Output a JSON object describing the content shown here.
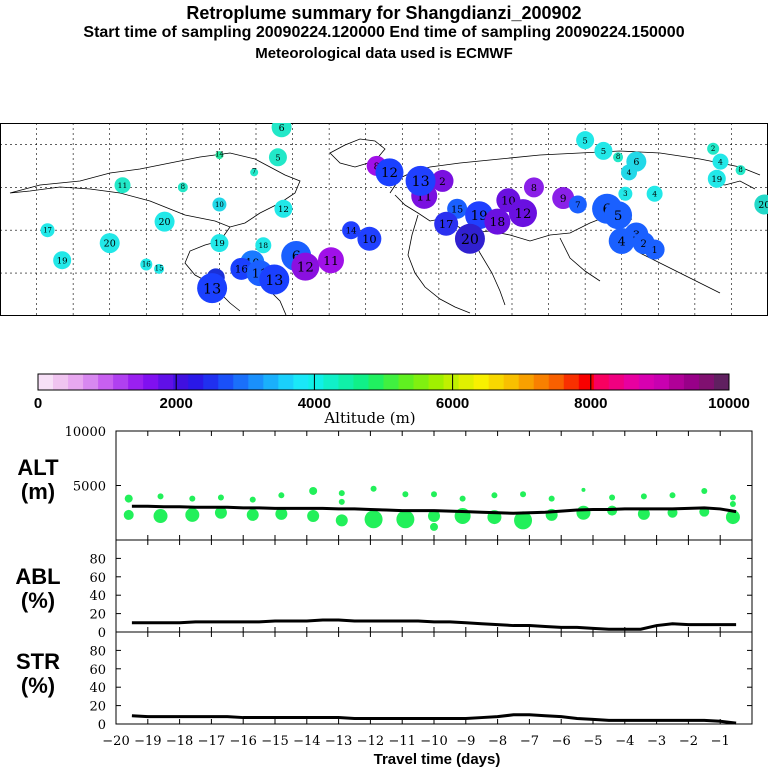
{
  "header": {
    "title": "Retroplume summary for Shangdianzi_200902",
    "sampling": "Start time of sampling 20090224.120000     End time of sampling 20090224.150000",
    "met": "Meteorological data used is ECMWF"
  },
  "map": {
    "plume_labels": [
      {
        "t": "11",
        "lon": -113,
        "lat": 61,
        "c": "#22e8c8"
      },
      {
        "t": "10",
        "lon": -60,
        "lat": 52,
        "c": "#22d8e8"
      },
      {
        "t": "8",
        "lon": -80,
        "lat": 60,
        "c": "#22e8c8"
      },
      {
        "t": "14",
        "lon": -60,
        "lat": 75,
        "c": "#22e8a0"
      },
      {
        "t": "7",
        "lon": -41,
        "lat": 67,
        "c": "#22e8c8"
      },
      {
        "t": "5",
        "lon": -28,
        "lat": 74,
        "c": "#22e8c8"
      },
      {
        "t": "6",
        "lon": -26,
        "lat": 88,
        "c": "#22e8c8"
      },
      {
        "t": "20",
        "lon": -90,
        "lat": 44,
        "c": "#22e8e8"
      },
      {
        "t": "19",
        "lon": -60,
        "lat": 34,
        "c": "#22e8e8"
      },
      {
        "t": "18",
        "lon": -36,
        "lat": 33,
        "c": "#22e8e8"
      },
      {
        "t": "6",
        "lon": -18,
        "lat": 28,
        "c": "#1a60ff"
      },
      {
        "t": "10",
        "lon": -42,
        "lat": 25,
        "c": "#1a7aff"
      },
      {
        "t": "12",
        "lon": -25,
        "lat": 50,
        "c": "#22e8e8"
      },
      {
        "t": "17",
        "lon": -154,
        "lat": 40,
        "c": "#22e8e8"
      },
      {
        "t": "19",
        "lon": -146,
        "lat": 26,
        "c": "#22e8e8"
      },
      {
        "t": "20",
        "lon": -120,
        "lat": 34,
        "c": "#22e8e8"
      },
      {
        "t": "16",
        "lon": -100,
        "lat": 24,
        "c": "#22e8e8"
      },
      {
        "t": "15",
        "lon": -93,
        "lat": 22,
        "c": "#22e8e8"
      },
      {
        "t": "7",
        "lon": -62,
        "lat": 18,
        "c": "#1a30d8"
      },
      {
        "t": "16",
        "lon": -48,
        "lat": 22,
        "c": "#1a40ff"
      },
      {
        "t": "11",
        "lon": -38,
        "lat": 20,
        "c": "#1a60ff"
      },
      {
        "t": "13",
        "lon": -30,
        "lat": 17,
        "c": "#1a40ff"
      },
      {
        "t": "12",
        "lon": -13,
        "lat": 23,
        "c": "#8a10e0"
      },
      {
        "t": "11",
        "lon": 1,
        "lat": 26,
        "c": "#a010e8"
      },
      {
        "t": "13",
        "lon": -64,
        "lat": 13,
        "c": "#1a40ff"
      },
      {
        "t": "14",
        "lon": 12,
        "lat": 40,
        "c": "#2040ff"
      },
      {
        "t": "10",
        "lon": 22,
        "lat": 36,
        "c": "#2040ff"
      },
      {
        "t": "8",
        "lon": 26,
        "lat": 70,
        "c": "#a010e8"
      },
      {
        "t": "12",
        "lon": 33,
        "lat": 67,
        "c": "#1a40ff"
      },
      {
        "t": "11",
        "lon": 52,
        "lat": 56,
        "c": "#7a10e0"
      },
      {
        "t": "2",
        "lon": 62,
        "lat": 63,
        "c": "#7a10e0"
      },
      {
        "t": "15",
        "lon": 70,
        "lat": 50,
        "c": "#1a60ff"
      },
      {
        "t": "19",
        "lon": 82,
        "lat": 47,
        "c": "#2040ff"
      },
      {
        "t": "18",
        "lon": 92,
        "lat": 44,
        "c": "#6a10e0"
      },
      {
        "t": "20",
        "lon": 77,
        "lat": 36,
        "c": "#3020d0"
      },
      {
        "t": "17",
        "lon": 64,
        "lat": 43,
        "c": "#2a30f0"
      },
      {
        "t": "8",
        "lon": 112,
        "lat": 60,
        "c": "#8a20e8"
      },
      {
        "t": "9",
        "lon": 128,
        "lat": 55,
        "c": "#8a20e8"
      },
      {
        "t": "7",
        "lon": 136,
        "lat": 52,
        "c": "#1a60ff"
      },
      {
        "t": "6",
        "lon": 152,
        "lat": 50,
        "c": "#1a60ff"
      },
      {
        "t": "5",
        "lon": 158,
        "lat": 47,
        "c": "#1a60ff"
      },
      {
        "t": "4",
        "lon": 160,
        "lat": 35,
        "c": "#1a60ff"
      },
      {
        "t": "3",
        "lon": 168,
        "lat": 38,
        "c": "#1a60ff"
      },
      {
        "t": "2",
        "lon": 172,
        "lat": 34,
        "c": "#1a60ff"
      },
      {
        "t": "1",
        "lon": 178,
        "lat": 31,
        "c": "#1a60ff"
      },
      {
        "t": "10",
        "lon": 98,
        "lat": 54,
        "c": "#6a10e0"
      },
      {
        "t": "12",
        "lon": 106,
        "lat": 48,
        "c": "#6a10e0"
      },
      {
        "t": "13",
        "lon": 50,
        "lat": 63,
        "c": "#2040ff"
      },
      {
        "t": "4",
        "lon": 164,
        "lat": 67,
        "c": "#22d8e8"
      },
      {
        "t": "3",
        "lon": 162,
        "lat": 57,
        "c": "#22e8e8"
      },
      {
        "t": "4",
        "lon": 178,
        "lat": 57,
        "c": "#22e8e8"
      },
      {
        "t": "5",
        "lon": 140,
        "lat": 82,
        "c": "#22e8e8"
      },
      {
        "t": "5",
        "lon": 150,
        "lat": 77,
        "c": "#22e8e8"
      },
      {
        "t": "8",
        "lon": 158,
        "lat": 74,
        "c": "#22e8c8"
      },
      {
        "t": "6",
        "lon": 168,
        "lat": 72,
        "c": "#22d8e8"
      },
      {
        "t": "2",
        "lon": 210,
        "lat": 78,
        "c": "#22e8c8"
      },
      {
        "t": "4",
        "lon": 214,
        "lat": 72,
        "c": "#22e8e8"
      },
      {
        "t": "19",
        "lon": 212,
        "lat": 64,
        "c": "#22e8e8"
      },
      {
        "t": "8",
        "lon": 225,
        "lat": 68,
        "c": "#22e8c8"
      },
      {
        "t": "20",
        "lon": 238,
        "lat": 52,
        "c": "#22d8c8"
      }
    ]
  },
  "colorbar": {
    "title": "Altitude (m)",
    "ticks": [
      "0",
      "2000",
      "4000",
      "6000",
      "8000",
      "10000"
    ],
    "colors": [
      "#f7e0f7",
      "#f0c4f0",
      "#e8a8f0",
      "#d888f0",
      "#c860f0",
      "#b040f0",
      "#9a20f0",
      "#8010f0",
      "#6010e8",
      "#4010e0",
      "#2a18e8",
      "#2030f0",
      "#1a50f8",
      "#1a70fa",
      "#1a90fc",
      "#1ab0fc",
      "#1ad0fc",
      "#1ae8f8",
      "#10f0e8",
      "#10f0c8",
      "#10f0a8",
      "#10f088",
      "#20f060",
      "#40f040",
      "#60f020",
      "#80f010",
      "#a0f000",
      "#c0f000",
      "#e0f000",
      "#f8f000",
      "#f8d800",
      "#f8c000",
      "#f8a000",
      "#f88000",
      "#f86000",
      "#f83000",
      "#f80000",
      "#f80060",
      "#f00080",
      "#e800a0",
      "#d800b0",
      "#c800b0",
      "#b00098",
      "#980088",
      "#801070",
      "#602060"
    ]
  },
  "chart_data": {
    "type": "line",
    "xlabel": "Travel time (days)",
    "xlim": [
      -20,
      0
    ],
    "xticks": [
      "-20",
      "-19",
      "-18",
      "-17",
      "-16",
      "-15",
      "-14",
      "-13",
      "-12",
      "-11",
      "-10",
      "-9",
      "-8",
      "-7",
      "-6",
      "-5",
      "-4",
      "-3",
      "-2",
      "-1"
    ],
    "x": [
      -19.5,
      -19,
      -18.5,
      -18,
      -17.5,
      -17,
      -16.5,
      -16,
      -15.5,
      -15,
      -14.5,
      -14,
      -13.5,
      -13,
      -12.5,
      -12,
      -11.5,
      -11,
      -10.5,
      -10,
      -9.5,
      -9,
      -8.5,
      -8,
      -7.5,
      -7,
      -6.5,
      -6,
      -5.5,
      -5,
      -4.5,
      -4,
      -3.5,
      -3,
      -2.5,
      -2,
      -1.5,
      -1,
      -0.5
    ],
    "panels": [
      {
        "label": "ALT\n(m)",
        "name": "ALT (m)",
        "ylim": [
          0,
          10000
        ],
        "yticks": [
          "10000",
          "5000"
        ],
        "ytick_values": [
          10000,
          5000
        ],
        "values": [
          3100,
          3100,
          3050,
          3050,
          3000,
          3000,
          3000,
          2950,
          2950,
          2900,
          2900,
          2900,
          2900,
          2850,
          2850,
          2800,
          2750,
          2700,
          2700,
          2700,
          2650,
          2600,
          2550,
          2500,
          2450,
          2500,
          2550,
          2650,
          2750,
          2800,
          2800,
          2850,
          2850,
          2850,
          2850,
          2900,
          2950,
          2850,
          2600
        ],
        "scatter": [
          {
            "x": -19.6,
            "y": 3800,
            "s": 4
          },
          {
            "x": -19.6,
            "y": 2300,
            "s": 5
          },
          {
            "x": -18.6,
            "y": 4000,
            "s": 3
          },
          {
            "x": -18.6,
            "y": 2200,
            "s": 7
          },
          {
            "x": -17.6,
            "y": 3800,
            "s": 3
          },
          {
            "x": -17.6,
            "y": 2300,
            "s": 7
          },
          {
            "x": -16.7,
            "y": 3900,
            "s": 3
          },
          {
            "x": -16.7,
            "y": 2500,
            "s": 6
          },
          {
            "x": -15.7,
            "y": 3700,
            "s": 3
          },
          {
            "x": -15.7,
            "y": 2300,
            "s": 6
          },
          {
            "x": -14.8,
            "y": 4100,
            "s": 3
          },
          {
            "x": -14.8,
            "y": 2400,
            "s": 6
          },
          {
            "x": -13.8,
            "y": 4500,
            "s": 4
          },
          {
            "x": -13.8,
            "y": 2200,
            "s": 6
          },
          {
            "x": -12.9,
            "y": 4300,
            "s": 3
          },
          {
            "x": -12.9,
            "y": 3500,
            "s": 3
          },
          {
            "x": -12.9,
            "y": 1800,
            "s": 6
          },
          {
            "x": -11.9,
            "y": 4700,
            "s": 3
          },
          {
            "x": -11.9,
            "y": 1900,
            "s": 9
          },
          {
            "x": -10.9,
            "y": 4200,
            "s": 3
          },
          {
            "x": -10.9,
            "y": 1900,
            "s": 9
          },
          {
            "x": -10.0,
            "y": 4200,
            "s": 3
          },
          {
            "x": -10.0,
            "y": 2200,
            "s": 6
          },
          {
            "x": -10.0,
            "y": 1200,
            "s": 4
          },
          {
            "x": -9.1,
            "y": 3800,
            "s": 3
          },
          {
            "x": -9.1,
            "y": 2200,
            "s": 8
          },
          {
            "x": -8.1,
            "y": 4100,
            "s": 3
          },
          {
            "x": -8.1,
            "y": 2100,
            "s": 7
          },
          {
            "x": -7.2,
            "y": 4200,
            "s": 3
          },
          {
            "x": -7.2,
            "y": 1800,
            "s": 9
          },
          {
            "x": -6.3,
            "y": 3800,
            "s": 3
          },
          {
            "x": -6.3,
            "y": 2300,
            "s": 6
          },
          {
            "x": -5.3,
            "y": 4600,
            "s": 2
          },
          {
            "x": -5.3,
            "y": 2500,
            "s": 7
          },
          {
            "x": -4.4,
            "y": 3900,
            "s": 3
          },
          {
            "x": -4.4,
            "y": 2700,
            "s": 5
          },
          {
            "x": -3.4,
            "y": 4000,
            "s": 3
          },
          {
            "x": -3.4,
            "y": 2400,
            "s": 6
          },
          {
            "x": -2.5,
            "y": 4100,
            "s": 3
          },
          {
            "x": -2.5,
            "y": 2500,
            "s": 5
          },
          {
            "x": -1.5,
            "y": 4500,
            "s": 3
          },
          {
            "x": -1.5,
            "y": 2600,
            "s": 5
          },
          {
            "x": -0.6,
            "y": 3900,
            "s": 3
          },
          {
            "x": -0.6,
            "y": 3300,
            "s": 3
          },
          {
            "x": -0.6,
            "y": 2100,
            "s": 7
          }
        ]
      },
      {
        "label": "ABL\n(%)",
        "name": "ABL (%)",
        "ylim": [
          0,
          100
        ],
        "yticks": [
          "80",
          "60",
          "40",
          "20",
          "0"
        ],
        "ytick_values": [
          80,
          60,
          40,
          20,
          0
        ],
        "values": [
          10,
          10,
          10,
          10,
          11,
          11,
          11,
          11,
          11,
          12,
          12,
          12,
          13,
          13,
          12,
          12,
          12,
          12,
          12,
          11,
          11,
          10,
          9,
          8,
          7,
          7,
          6,
          5,
          5,
          4,
          3,
          3,
          3,
          7,
          9,
          8,
          8,
          8,
          8
        ]
      },
      {
        "label": "STR\n(%)",
        "name": "STR (%)",
        "ylim": [
          0,
          100
        ],
        "yticks": [
          "80",
          "60",
          "40",
          "20",
          "0"
        ],
        "ytick_values": [
          80,
          60,
          40,
          20,
          0
        ],
        "values": [
          9,
          8,
          8,
          8,
          8,
          8,
          8,
          7,
          7,
          7,
          7,
          7,
          7,
          7,
          6,
          6,
          6,
          6,
          6,
          6,
          6,
          6,
          7,
          8,
          10,
          10,
          9,
          8,
          6,
          5,
          4,
          4,
          4,
          4,
          4,
          4,
          4,
          3,
          1
        ]
      }
    ]
  }
}
